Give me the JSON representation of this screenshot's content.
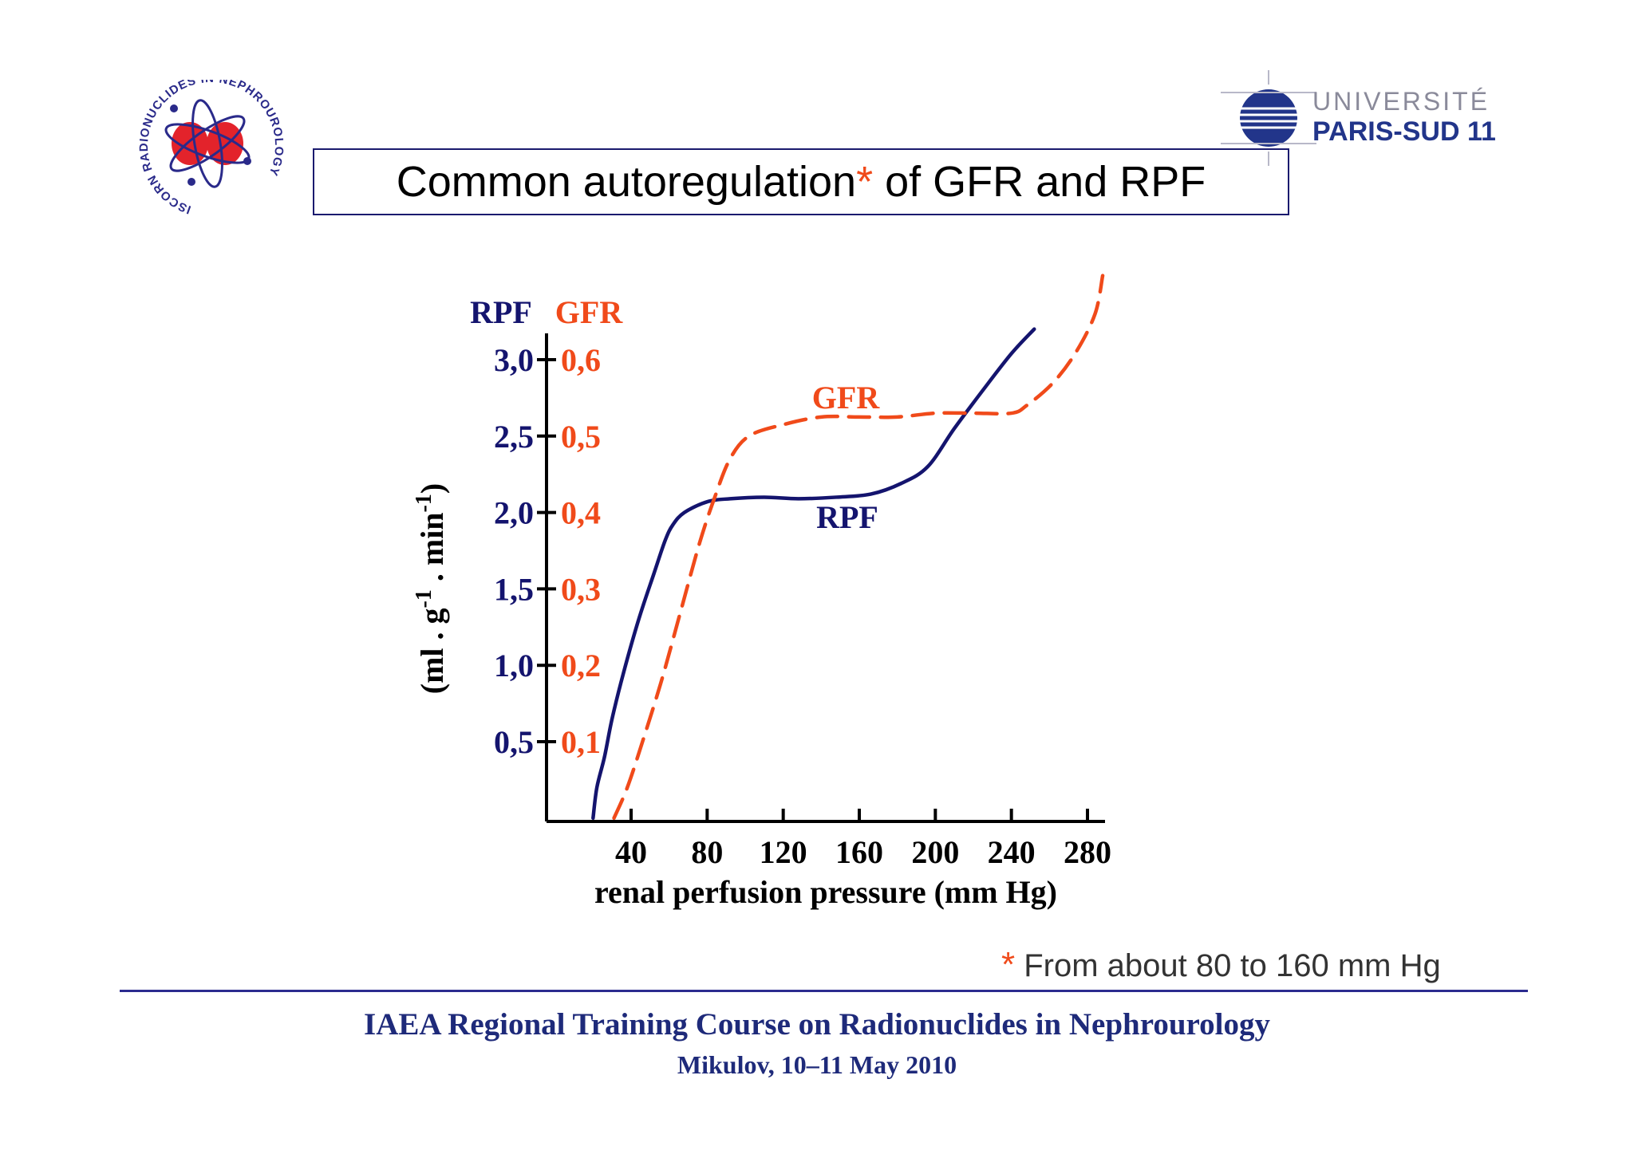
{
  "header": {
    "left_logo": {
      "ring_text": "ISCORN RADIONUCLIDES IN NEPHROUROLOGY"
    },
    "right_logo": {
      "line1": "UNIVERSITÉ",
      "line2": "PARIS-SUD 11"
    }
  },
  "title": {
    "text": "Common autoregulation",
    "star": "*",
    "rest": " of GFR and RPF"
  },
  "colors": {
    "rpf": "#14146e",
    "gfr": "#f04a1a",
    "title_border": "#1a1a6e",
    "footer": "#1e2a7a"
  },
  "chart_data": {
    "type": "line",
    "xlabel": "renal perfusion pressure (mm Hg)",
    "ylabel_html": "(ml . g-1 . min-1)",
    "ylabel_parts": [
      "(ml . g",
      "-1",
      " . min",
      "-1",
      ")"
    ],
    "left_axis_title": "RPF",
    "right_axis_title": "GFR",
    "x_ticks": [
      40,
      80,
      120,
      160,
      200,
      240,
      280
    ],
    "xlim": [
      0,
      285
    ],
    "y_ticks_rpf": [
      "0,5",
      "1,0",
      "1,5",
      "2,0",
      "2,5",
      "3,0"
    ],
    "y_ticks_gfr": [
      "0,1",
      "0,2",
      "0,3",
      "0,4",
      "0,5",
      "0,6"
    ],
    "y_tick_values": [
      0.5,
      1.0,
      1.5,
      2.0,
      2.5,
      3.0
    ],
    "ylim": [
      0,
      3.3
    ],
    "series": [
      {
        "name": "RPF",
        "axis": "left",
        "style": "solid",
        "x": [
          20,
          22,
          26,
          30,
          36,
          44,
          52,
          58,
          62,
          68,
          80,
          92,
          110,
          128,
          148,
          166,
          182,
          196,
          210,
          225,
          240,
          252
        ],
        "y": [
          0.0,
          0.2,
          0.4,
          0.65,
          0.95,
          1.3,
          1.6,
          1.82,
          1.92,
          2.0,
          2.07,
          2.09,
          2.1,
          2.09,
          2.1,
          2.12,
          2.19,
          2.3,
          2.55,
          2.8,
          3.04,
          3.2
        ]
      },
      {
        "name": "GFR",
        "axis": "right",
        "style": "dashed",
        "x": [
          31,
          38,
          46,
          56,
          66,
          76,
          84,
          92,
          102,
          120,
          140,
          160,
          180,
          200,
          220,
          240,
          248,
          262,
          274,
          284,
          288
        ],
        "y": [
          0.0,
          0.04,
          0.1,
          0.18,
          0.27,
          0.36,
          0.42,
          0.47,
          0.5,
          0.515,
          0.525,
          0.525,
          0.525,
          0.53,
          0.53,
          0.53,
          0.54,
          0.57,
          0.61,
          0.66,
          0.71
        ]
      }
    ]
  },
  "footnote": {
    "star": "*",
    "text": " From about 80 to 160 mm Hg"
  },
  "footer": {
    "line1": "IAEA Regional Training Course on Radionuclides in Nephrourology",
    "line2": "Mikulov, 10–11 May 2010"
  }
}
